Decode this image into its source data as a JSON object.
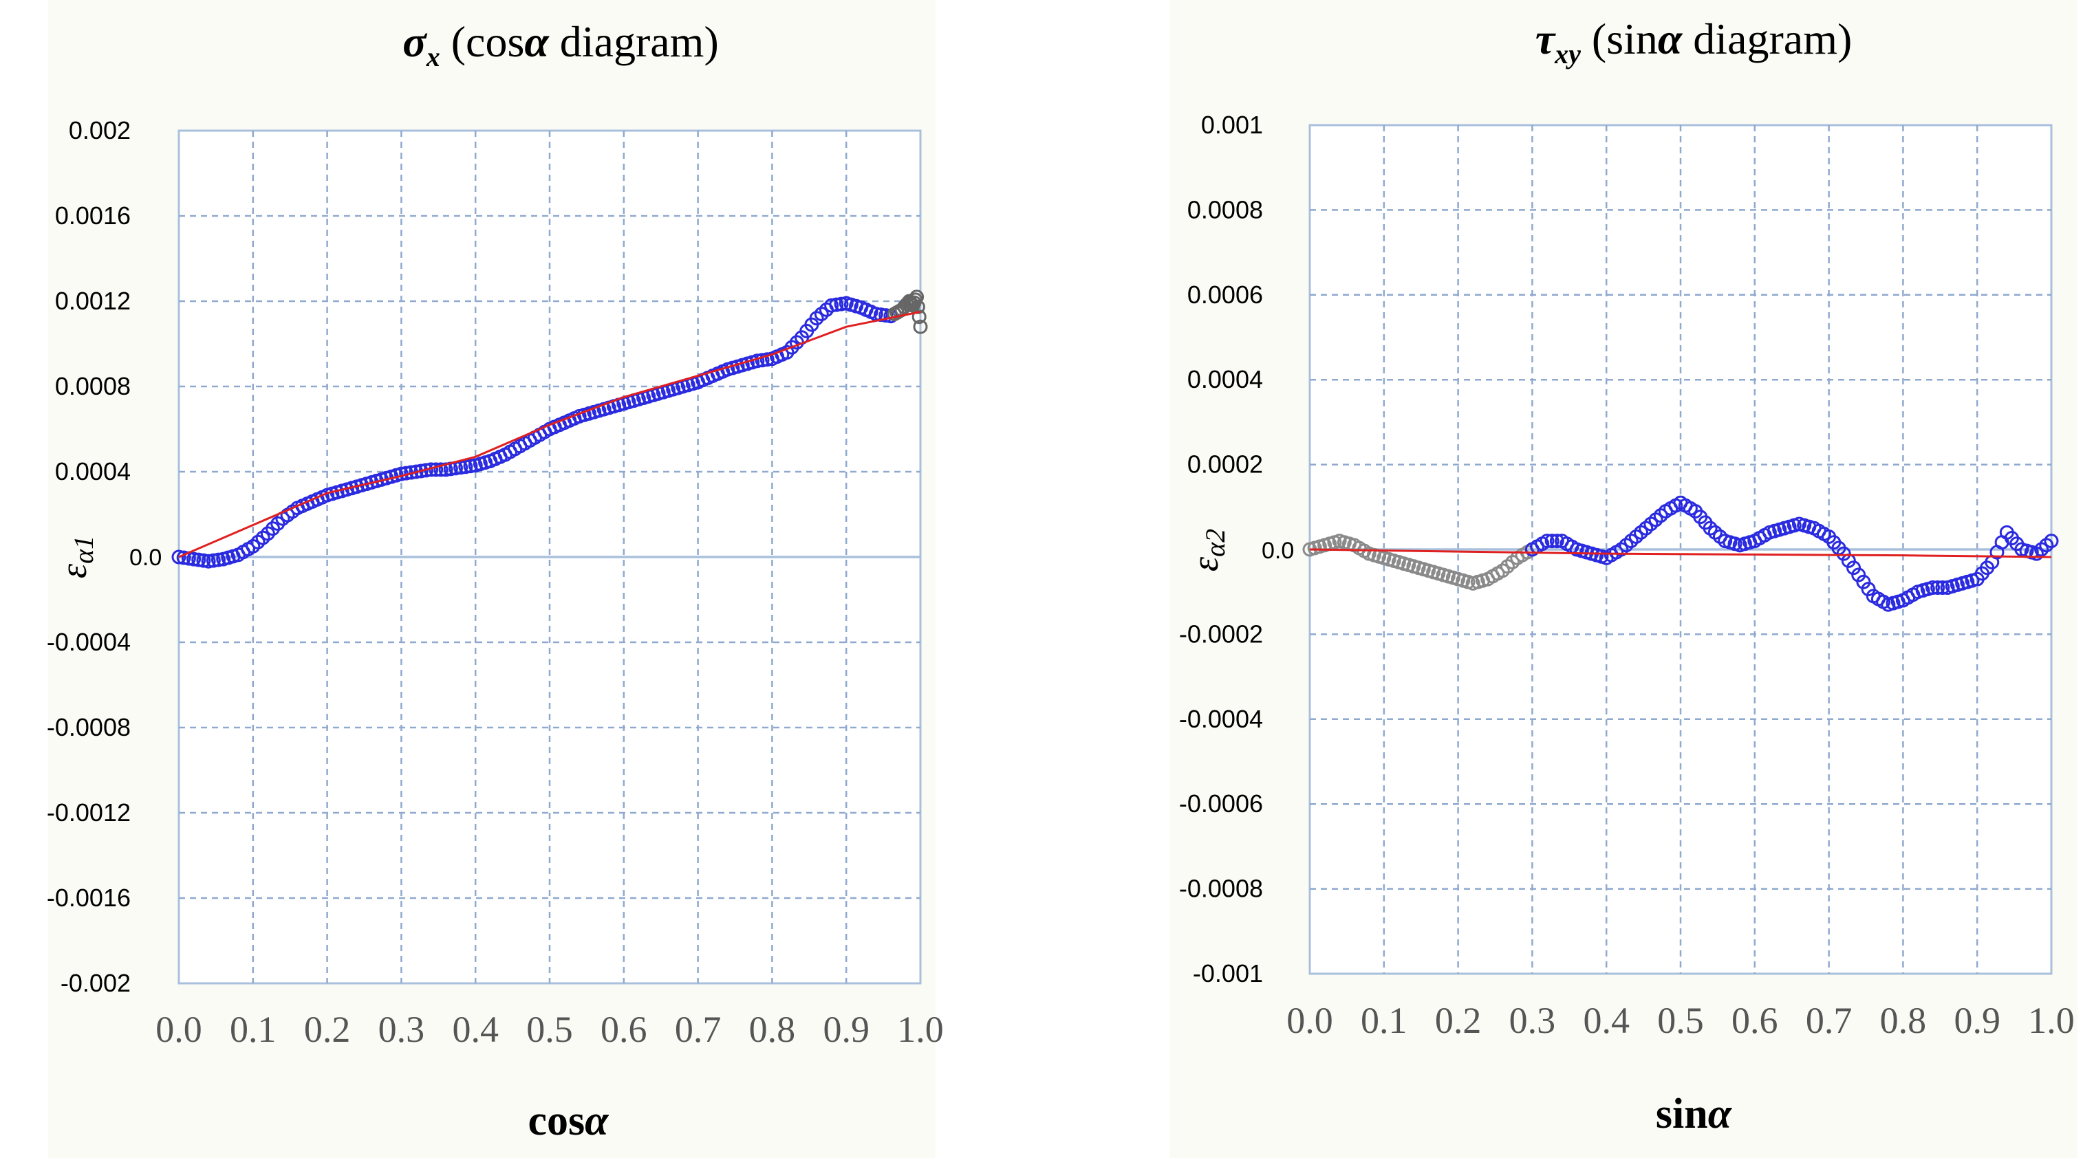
{
  "chart_data": [
    {
      "type": "scatter",
      "title": "σx (cosα diagram)",
      "title_main": "σ",
      "title_sub": "x",
      "title_rest": " (cos",
      "title_alpha": "α",
      "title_end": " diagram)",
      "xlabel_main": "cos",
      "xlabel_alpha": "α",
      "ylabel_main": "ε",
      "ylabel_sub": "α1",
      "zero_label": "0.0",
      "xlim": [
        0,
        1
      ],
      "ylim": [
        -0.002,
        0.002
      ],
      "x_ticks": [
        "0.0",
        "0.1",
        "0.2",
        "0.3",
        "0.4",
        "0.5",
        "0.6",
        "0.7",
        "0.8",
        "0.9",
        "1.0"
      ],
      "y_ticks": [
        {
          "value": 0.002,
          "label": "0.002"
        },
        {
          "value": 0.0016,
          "label": "0.0016"
        },
        {
          "value": 0.0012,
          "label": "0.0012"
        },
        {
          "value": 0.0008,
          "label": "0.0008"
        },
        {
          "value": 0.0004,
          "label": "0.0004"
        },
        {
          "value": -0.0004,
          "label": "-0.0004"
        },
        {
          "value": -0.0008,
          "label": "-0.0008"
        },
        {
          "value": -0.0012,
          "label": "-0.0012"
        },
        {
          "value": -0.0016,
          "label": "-0.0016"
        },
        {
          "value": -0.002,
          "label": "-0.002"
        }
      ],
      "grid": true,
      "colors": {
        "marker": "#2a2ae0",
        "fit": "#e02020",
        "gray": "#666666",
        "axis": "#a9c0dc",
        "grid": "#8fa9cf"
      },
      "series": [
        {
          "role": "measured",
          "color": "#2a2ae0",
          "x": [
            0.0,
            0.02,
            0.04,
            0.06,
            0.08,
            0.1,
            0.12,
            0.14,
            0.16,
            0.18,
            0.2,
            0.22,
            0.24,
            0.26,
            0.28,
            0.3,
            0.32,
            0.34,
            0.36,
            0.38,
            0.4,
            0.42,
            0.44,
            0.46,
            0.48,
            0.5,
            0.52,
            0.54,
            0.56,
            0.58,
            0.6,
            0.62,
            0.64,
            0.66,
            0.68,
            0.7,
            0.72,
            0.74,
            0.76,
            0.78,
            0.8,
            0.82,
            0.84,
            0.86,
            0.88,
            0.9,
            0.92,
            0.94,
            0.96
          ],
          "y": [
            0.0,
            -1e-05,
            -2e-05,
            -1e-05,
            1e-05,
            5e-05,
            0.00011,
            0.00018,
            0.00023,
            0.00026,
            0.00029,
            0.00031,
            0.00033,
            0.00035,
            0.00037,
            0.00039,
            0.0004,
            0.00041,
            0.00041,
            0.00042,
            0.00043,
            0.00045,
            0.00048,
            0.00052,
            0.00056,
            0.0006,
            0.00063,
            0.00066,
            0.00068,
            0.0007,
            0.00072,
            0.00074,
            0.00076,
            0.00078,
            0.0008,
            0.00082,
            0.00085,
            0.00088,
            0.0009,
            0.00092,
            0.00093,
            0.00096,
            0.00103,
            0.00112,
            0.00118,
            0.00119,
            0.00117,
            0.00114,
            0.00113
          ]
        },
        {
          "role": "measured-end",
          "color": "#666666",
          "x": [
            0.965,
            0.975,
            0.985,
            0.99,
            0.995,
            1.0
          ],
          "y": [
            0.00114,
            0.00116,
            0.0012,
            0.00118,
            0.00122,
            0.00108
          ]
        },
        {
          "role": "fit",
          "color": "#e02020",
          "x": [
            0.0,
            0.1,
            0.2,
            0.3,
            0.4,
            0.5,
            0.6,
            0.7,
            0.8,
            0.9,
            1.0
          ],
          "y": [
            0.0,
            0.00015,
            0.0003,
            0.00038,
            0.00047,
            0.00062,
            0.00075,
            0.00085,
            0.00095,
            0.00108,
            0.00115
          ]
        }
      ]
    },
    {
      "type": "scatter",
      "title": "τxy (sinα diagram)",
      "title_main": "τ",
      "title_sub": "xy",
      "title_rest": " (sin",
      "title_alpha": "α",
      "title_end": " diagram)",
      "xlabel_main": "sin",
      "xlabel_alpha": "α",
      "ylabel_main": "ε",
      "ylabel_sub": "α2",
      "zero_label": "0.0",
      "xlim": [
        0,
        1
      ],
      "ylim": [
        -0.001,
        0.001
      ],
      "x_ticks": [
        "0.0",
        "0.1",
        "0.2",
        "0.3",
        "0.4",
        "0.5",
        "0.6",
        "0.7",
        "0.8",
        "0.9",
        "1.0"
      ],
      "y_ticks": [
        {
          "value": 0.001,
          "label": "0.001"
        },
        {
          "value": 0.0008,
          "label": "0.0008"
        },
        {
          "value": 0.0006,
          "label": "0.0006"
        },
        {
          "value": 0.0004,
          "label": "0.0004"
        },
        {
          "value": 0.0002,
          "label": "0.0002"
        },
        {
          "value": -0.0002,
          "label": "-0.0002"
        },
        {
          "value": -0.0004,
          "label": "-0.0004"
        },
        {
          "value": -0.0006,
          "label": "-0.0006"
        },
        {
          "value": -0.0008,
          "label": "-0.0008"
        },
        {
          "value": -0.001,
          "label": "-0.001"
        }
      ],
      "grid": true,
      "colors": {
        "marker": "#2a2ae0",
        "fit": "#e02020",
        "gray": "#8a8a8a",
        "axis": "#a9c0dc",
        "grid": "#8fa9cf"
      },
      "series": [
        {
          "role": "measured-start",
          "color": "#8a8a8a",
          "x": [
            0.0,
            0.02,
            0.04,
            0.06,
            0.08,
            0.1,
            0.12,
            0.14,
            0.16,
            0.18,
            0.2,
            0.22,
            0.24,
            0.26,
            0.28,
            0.3
          ],
          "y": [
            0.0,
            1e-05,
            2e-05,
            1e-05,
            -1e-05,
            -2e-05,
            -3e-05,
            -4e-05,
            -5e-05,
            -6e-05,
            -7e-05,
            -8e-05,
            -7e-05,
            -5e-05,
            -2e-05,
            0.0
          ]
        },
        {
          "role": "measured",
          "color": "#2a2ae0",
          "x": [
            0.3,
            0.32,
            0.34,
            0.36,
            0.38,
            0.4,
            0.42,
            0.44,
            0.46,
            0.48,
            0.5,
            0.52,
            0.54,
            0.56,
            0.58,
            0.6,
            0.62,
            0.64,
            0.66,
            0.68,
            0.7,
            0.72,
            0.74,
            0.76,
            0.78,
            0.8,
            0.82,
            0.84,
            0.86,
            0.88,
            0.9,
            0.92,
            0.94,
            0.96,
            0.98,
            1.0
          ],
          "y": [
            0.0,
            2e-05,
            2e-05,
            0.0,
            -1e-05,
            -2e-05,
            0.0,
            3e-05,
            6e-05,
            9e-05,
            0.00011,
            9e-05,
            5e-05,
            2e-05,
            1e-05,
            2e-05,
            4e-05,
            5e-05,
            6e-05,
            5e-05,
            3e-05,
            -1e-05,
            -6e-05,
            -0.00011,
            -0.00013,
            -0.00012,
            -0.0001,
            -9e-05,
            -9e-05,
            -8e-05,
            -7e-05,
            -3e-05,
            4e-05,
            0.0,
            -1e-05,
            2e-05
          ]
        },
        {
          "role": "fit",
          "color": "#e02020",
          "x": [
            0.0,
            0.2,
            0.4,
            0.6,
            0.8,
            1.0
          ],
          "y": [
            0.0,
            -5e-06,
            -1e-05,
            -1.2e-05,
            -1.4e-05,
            -1.8e-05
          ]
        }
      ]
    }
  ]
}
